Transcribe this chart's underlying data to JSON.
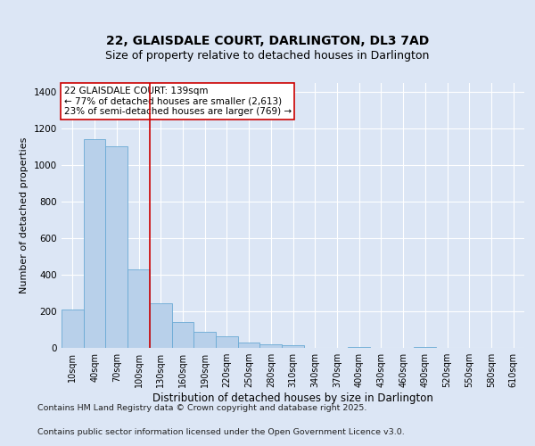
{
  "title_line1": "22, GLAISDALE COURT, DARLINGTON, DL3 7AD",
  "title_line2": "Size of property relative to detached houses in Darlington",
  "xlabel": "Distribution of detached houses by size in Darlington",
  "ylabel": "Number of detached properties",
  "categories": [
    "10sqm",
    "40sqm",
    "70sqm",
    "100sqm",
    "130sqm",
    "160sqm",
    "190sqm",
    "220sqm",
    "250sqm",
    "280sqm",
    "310sqm",
    "340sqm",
    "370sqm",
    "400sqm",
    "430sqm",
    "460sqm",
    "490sqm",
    "520sqm",
    "550sqm",
    "580sqm",
    "610sqm"
  ],
  "values": [
    210,
    1140,
    1100,
    430,
    245,
    140,
    90,
    65,
    30,
    20,
    15,
    0,
    0,
    5,
    0,
    0,
    5,
    0,
    0,
    0,
    0
  ],
  "bar_color": "#b8d0ea",
  "bar_edge_color": "#6aaad4",
  "vline_x_index": 3.5,
  "vline_color": "#cc0000",
  "annotation_text": "22 GLAISDALE COURT: 139sqm\n← 77% of detached houses are smaller (2,613)\n23% of semi-detached houses are larger (769) →",
  "annotation_box_color": "white",
  "annotation_box_edge_color": "#cc0000",
  "ylim": [
    0,
    1450
  ],
  "yticks": [
    0,
    200,
    400,
    600,
    800,
    1000,
    1200,
    1400
  ],
  "bg_color": "#dce6f5",
  "plot_bg_color": "#dce6f5",
  "grid_color": "white",
  "footer_line1": "Contains HM Land Registry data © Crown copyright and database right 2025.",
  "footer_line2": "Contains public sector information licensed under the Open Government Licence v3.0.",
  "title_fontsize": 10,
  "subtitle_fontsize": 9,
  "annotation_fontsize": 7.5,
  "footer_fontsize": 6.8,
  "ylabel_fontsize": 8,
  "xlabel_fontsize": 8.5
}
